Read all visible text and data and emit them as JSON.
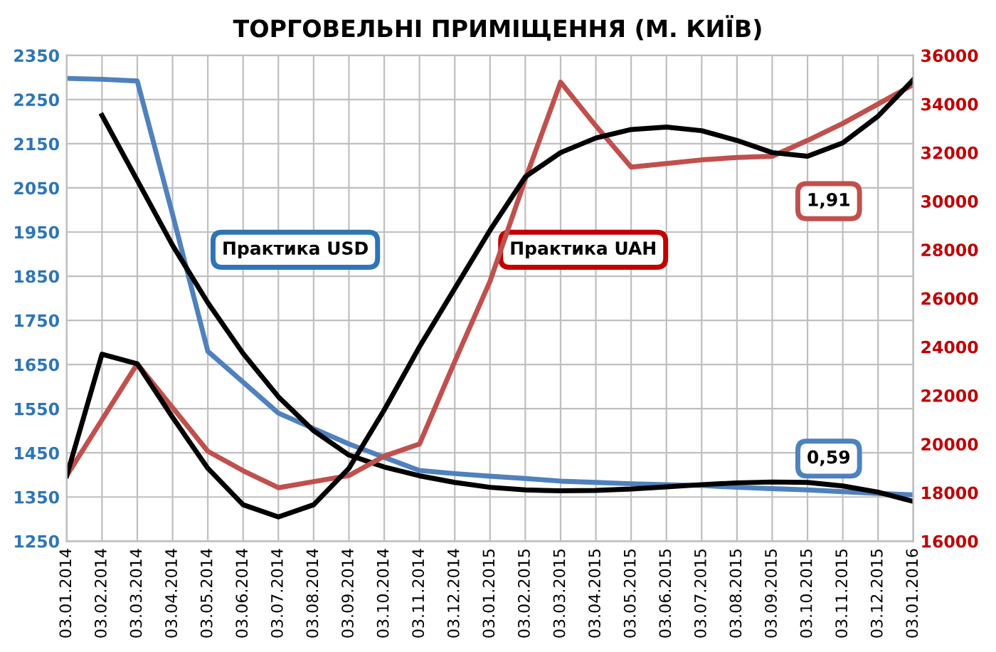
{
  "chart_data": {
    "type": "line",
    "title": "ТОРГОВЕЛЬНІ ПРИМІЩЕННЯ (М. КИЇВ)",
    "categories": [
      "03.01.2014",
      "03.02.2014",
      "03.03.2014",
      "03.04.2014",
      "03.05.2014",
      "03.06.2014",
      "03.07.2014",
      "03.08.2014",
      "03.09.2014",
      "03.10.2014",
      "03.11.2014",
      "03.12.2014",
      "03.01.2015",
      "03.02.2015",
      "03.03.2015",
      "03.04.2015",
      "03.05.2015",
      "03.06.2015",
      "03.07.2015",
      "03.08.2015",
      "03.09.2015",
      "03.10.2015",
      "03.11.2015",
      "03.12.2015",
      "03.01.2016"
    ],
    "series": [
      {
        "color": "#4f81bd",
        "values": [
          2298,
          2296,
          2292,
          1990,
          1680,
          1610,
          1540,
          1505,
          1470,
          1440,
          1410,
          1403,
          1397,
          1392,
          1386,
          1383,
          1380,
          1378,
          1376,
          1372,
          1369,
          1366,
          1362,
          1358,
          1355
        ]
      },
      {
        "color": "#c0504d",
        "axis": "y2",
        "values": [
          18700,
          21000,
          23300,
          21500,
          19700,
          18900,
          18200,
          18450,
          18700,
          19500,
          20000,
          23400,
          26700,
          30900,
          34900,
          33100,
          31400,
          31550,
          31700,
          31800,
          31850,
          32500,
          33200,
          34000,
          34800
        ]
      },
      {
        "color": "#000000",
        "values": [
          null,
          2214,
          2067,
          1920,
          1790,
          1675,
          1577,
          1500,
          1445,
          1418,
          1398,
          1383,
          1372,
          1366,
          1364,
          1365,
          1368,
          1373,
          1378,
          1382,
          1384,
          1383,
          1375,
          1361,
          1340
        ]
      },
      {
        "color": "#000000",
        "axis": "y2",
        "values": [
          18700,
          23700,
          23300,
          21100,
          19000,
          17500,
          17000,
          17500,
          19000,
          21400,
          24000,
          26400,
          28800,
          31000,
          32000,
          32600,
          32950,
          33050,
          32900,
          32500,
          32000,
          31850,
          32400,
          33500,
          35000
        ]
      }
    ],
    "ylim": [
      1250,
      2350
    ],
    "yticks": [
      1250,
      1350,
      1450,
      1550,
      1650,
      1750,
      1850,
      1950,
      2050,
      2150,
      2250,
      2350
    ],
    "y2lim": [
      16000,
      36000
    ],
    "y2ticks": [
      16000,
      18000,
      20000,
      22000,
      24000,
      26000,
      28000,
      30000,
      32000,
      34000,
      36000
    ],
    "grid": true,
    "annotations": [
      "Практика USD",
      "Практика UAH",
      "1,91",
      "0,59"
    ]
  }
}
